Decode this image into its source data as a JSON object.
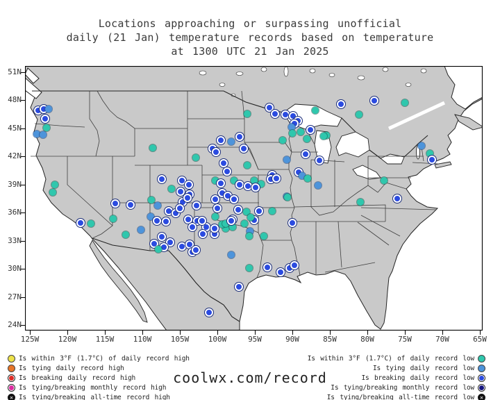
{
  "title": {
    "line1": "Locations approaching or surpassing unofficial",
    "line2": "daily (21 Jan) temperature records based on temperature",
    "line3": "at 1300 UTC 21 Jan 2025"
  },
  "watermark": "coolwx.com/record",
  "axes": {
    "lat_labels": [
      "51N",
      "48N",
      "45N",
      "42N",
      "39N",
      "36N",
      "33N",
      "30N",
      "27N",
      "24N"
    ],
    "lon_labels": [
      "125W",
      "120W",
      "115W",
      "110W",
      "105W",
      "100W",
      "95W",
      "90W",
      "85W",
      "80W",
      "75W",
      "70W",
      "65W"
    ]
  },
  "legend_left": [
    {
      "symbol": "yellow-circle",
      "color": "#EDE24A",
      "ring": false,
      "x_mark": false,
      "label": "Is within 3°F (1.7°C) of daily record high"
    },
    {
      "symbol": "orange-circle",
      "color": "#E8762A",
      "ring": false,
      "x_mark": false,
      "label": "Is tying daily record high"
    },
    {
      "symbol": "red-ringed-circle",
      "color": "#DF2B25",
      "ring": true,
      "x_mark": false,
      "label": "Is breaking daily record high"
    },
    {
      "symbol": "magenta-ringed-circle",
      "color": "#DD2BA0",
      "ring": true,
      "x_mark": false,
      "label": "Is tying/breaking monthly record high"
    },
    {
      "symbol": "black-x-circle",
      "color": "#111111",
      "ring": false,
      "x_mark": true,
      "label": "Is tying/breaking all-time record high"
    }
  ],
  "legend_right": [
    {
      "symbol": "teal-circle",
      "color": "#2FC7AD",
      "ring": false,
      "x_mark": false,
      "label": "Is within 3°F (1.7°C) of daily record low"
    },
    {
      "symbol": "blue-circle",
      "color": "#4D94DB",
      "ring": false,
      "x_mark": false,
      "label": "Is tying daily record low"
    },
    {
      "symbol": "royalblue-ringed-circle",
      "color": "#2B4BE0",
      "ring": true,
      "x_mark": false,
      "label": "Is breaking daily record low"
    },
    {
      "symbol": "navy-ringed-circle",
      "color": "#15157F",
      "ring": true,
      "x_mark": false,
      "label": "Is tying/breaking monthly record low"
    },
    {
      "symbol": "black-x-circle",
      "color": "#111111",
      "ring": false,
      "x_mark": true,
      "label": "Is tying/breaking all-time record low"
    }
  ],
  "colors": {
    "land": "#C9C9C9",
    "water": "#FFFFFF",
    "frame": "#000000",
    "state_line": "#3F3F3F",
    "within_low": "#2FC7AD",
    "tying_low": "#4D94DB",
    "breaking_low": "#2B4BE0",
    "monthly_low": "#15157F",
    "text": "#333333"
  },
  "chart_data": {
    "type": "scatter",
    "title": "Locations approaching or surpassing unofficial daily (21 Jan) temperature records at 1300 UTC 21 Jan 2025",
    "x_axis_ticks": [
      "125W",
      "120W",
      "115W",
      "110W",
      "105W",
      "100W",
      "95W",
      "90W",
      "85W",
      "80W",
      "75W",
      "70W",
      "65W"
    ],
    "y_axis_ticks": [
      "51N",
      "48N",
      "45N",
      "42N",
      "39N",
      "36N",
      "33N",
      "30N",
      "27N",
      "24N"
    ],
    "points_format": [
      "x_px",
      "y_px",
      "type"
    ],
    "point_types": {
      "w": "within 3F of daily record low (teal)",
      "t": "tying daily record low (light blue)",
      "b": "breaking daily record low (blue, white ring)"
    },
    "points": [
      [
        55,
        159,
        "b"
      ],
      [
        63,
        157,
        "b"
      ],
      [
        70,
        157,
        "t"
      ],
      [
        65,
        171,
        "b"
      ],
      [
        67,
        184,
        "w"
      ],
      [
        53,
        193,
        "t"
      ],
      [
        62,
        194,
        "t"
      ],
      [
        79,
        266,
        "w"
      ],
      [
        76,
        277,
        "w"
      ],
      [
        116,
        321,
        "b"
      ],
      [
        131,
        322,
        "w"
      ],
      [
        166,
        293,
        "b"
      ],
      [
        188,
        295,
        "b"
      ],
      [
        163,
        315,
        "w"
      ],
      [
        181,
        338,
        "w"
      ],
      [
        203,
        331,
        "t"
      ],
      [
        217,
        312,
        "t"
      ],
      [
        220,
        213,
        "w"
      ],
      [
        388,
        155,
        "b"
      ],
      [
        491,
        150,
        "b"
      ],
      [
        539,
        145,
        "b"
      ],
      [
        583,
        148,
        "w"
      ],
      [
        517,
        165,
        "w"
      ],
      [
        470,
        195,
        "w"
      ],
      [
        396,
        164,
        "b"
      ],
      [
        411,
        165,
        "b"
      ],
      [
        422,
        167,
        "b"
      ],
      [
        429,
        174,
        "b"
      ],
      [
        424,
        178,
        "b"
      ],
      [
        454,
        159,
        "w"
      ],
      [
        433,
        190,
        "w"
      ],
      [
        447,
        187,
        "b"
      ],
      [
        442,
        200,
        "w"
      ],
      [
        356,
        164,
        "w"
      ],
      [
        420,
        183,
        "t"
      ],
      [
        421,
        192,
        "w"
      ],
      [
        466,
        196,
        "w"
      ],
      [
        440,
        222,
        "b"
      ],
      [
        460,
        231,
        "b"
      ],
      [
        413,
        230,
        "t"
      ],
      [
        392,
        252,
        "b"
      ],
      [
        430,
        248,
        "b"
      ],
      [
        413,
        283,
        "t"
      ],
      [
        407,
        202,
        "w"
      ],
      [
        345,
        197,
        "b"
      ],
      [
        318,
        202,
        "b"
      ],
      [
        333,
        204,
        "t"
      ],
      [
        351,
        214,
        "b"
      ],
      [
        306,
        214,
        "b"
      ],
      [
        311,
        219,
        "b"
      ],
      [
        282,
        227,
        "w"
      ],
      [
        322,
        235,
        "b"
      ],
      [
        327,
        247,
        "b"
      ],
      [
        356,
        238,
        "w"
      ],
      [
        376,
        265,
        "w"
      ],
      [
        435,
        253,
        "t"
      ],
      [
        443,
        257,
        "w"
      ],
      [
        458,
        267,
        "t"
      ],
      [
        390,
        258,
        "b"
      ],
      [
        398,
        257,
        "b"
      ],
      [
        233,
        258,
        "b"
      ],
      [
        262,
        260,
        "b"
      ],
      [
        272,
        266,
        "b"
      ],
      [
        310,
        260,
        "w"
      ],
      [
        318,
        264,
        "b"
      ],
      [
        337,
        260,
        "w"
      ],
      [
        345,
        266,
        "b"
      ],
      [
        357,
        268,
        "b"
      ],
      [
        366,
        260,
        "w"
      ],
      [
        368,
        270,
        "b"
      ],
      [
        247,
        272,
        "w"
      ],
      [
        260,
        276,
        "b"
      ],
      [
        273,
        280,
        "b"
      ],
      [
        320,
        278,
        "b"
      ],
      [
        328,
        282,
        "b"
      ],
      [
        310,
        287,
        "b"
      ],
      [
        337,
        287,
        "b"
      ],
      [
        263,
        291,
        "b"
      ],
      [
        283,
        296,
        "b"
      ],
      [
        313,
        300,
        "b"
      ],
      [
        343,
        302,
        "b"
      ],
      [
        355,
        305,
        "w"
      ],
      [
        310,
        312,
        "w"
      ],
      [
        284,
        318,
        "b"
      ],
      [
        335,
        316,
        "b"
      ],
      [
        366,
        317,
        "b"
      ],
      [
        352,
        322,
        "w"
      ],
      [
        297,
        327,
        "b"
      ],
      [
        325,
        329,
        "w"
      ],
      [
        335,
        327,
        "w"
      ],
      [
        309,
        337,
        "b"
      ],
      [
        360,
        333,
        "t"
      ],
      [
        380,
        340,
        "w"
      ],
      [
        218,
        288,
        "w"
      ],
      [
        227,
        296,
        "t"
      ],
      [
        243,
        304,
        "b"
      ],
      [
        253,
        307,
        "b"
      ],
      [
        259,
        300,
        "b"
      ],
      [
        270,
        285,
        "b"
      ],
      [
        226,
        318,
        "b"
      ],
      [
        239,
        319,
        "b"
      ],
      [
        271,
        316,
        "b"
      ],
      [
        277,
        327,
        "b"
      ],
      [
        291,
        318,
        "b"
      ],
      [
        233,
        341,
        "b"
      ],
      [
        222,
        351,
        "b"
      ],
      [
        245,
        349,
        "b"
      ],
      [
        236,
        356,
        "b"
      ],
      [
        228,
        359,
        "w"
      ],
      [
        292,
        337,
        "b"
      ],
      [
        262,
        355,
        "b"
      ],
      [
        273,
        352,
        "b"
      ],
      [
        277,
        363,
        "b"
      ],
      [
        282,
        360,
        "b"
      ],
      [
        333,
        367,
        "t"
      ],
      [
        320,
        323,
        "w"
      ],
      [
        325,
        322,
        "w"
      ],
      [
        333,
        318,
        "b"
      ],
      [
        309,
        329,
        "b"
      ],
      [
        359,
        386,
        "w"
      ],
      [
        385,
        385,
        "b"
      ],
      [
        404,
        392,
        "b"
      ],
      [
        417,
        386,
        "b"
      ],
      [
        424,
        382,
        "b"
      ],
      [
        344,
        413,
        "b"
      ],
      [
        301,
        450,
        "b"
      ],
      [
        414,
        284,
        "w"
      ],
      [
        519,
        291,
        "w"
      ],
      [
        373,
        304,
        "b"
      ],
      [
        392,
        304,
        "w"
      ],
      [
        361,
        313,
        "w"
      ],
      [
        421,
        321,
        "b"
      ],
      [
        359,
        340,
        "w"
      ],
      [
        553,
        260,
        "w"
      ],
      [
        607,
        210,
        "t"
      ],
      [
        619,
        221,
        "w"
      ],
      [
        622,
        230,
        "b"
      ],
      [
        572,
        286,
        "b"
      ]
    ]
  }
}
